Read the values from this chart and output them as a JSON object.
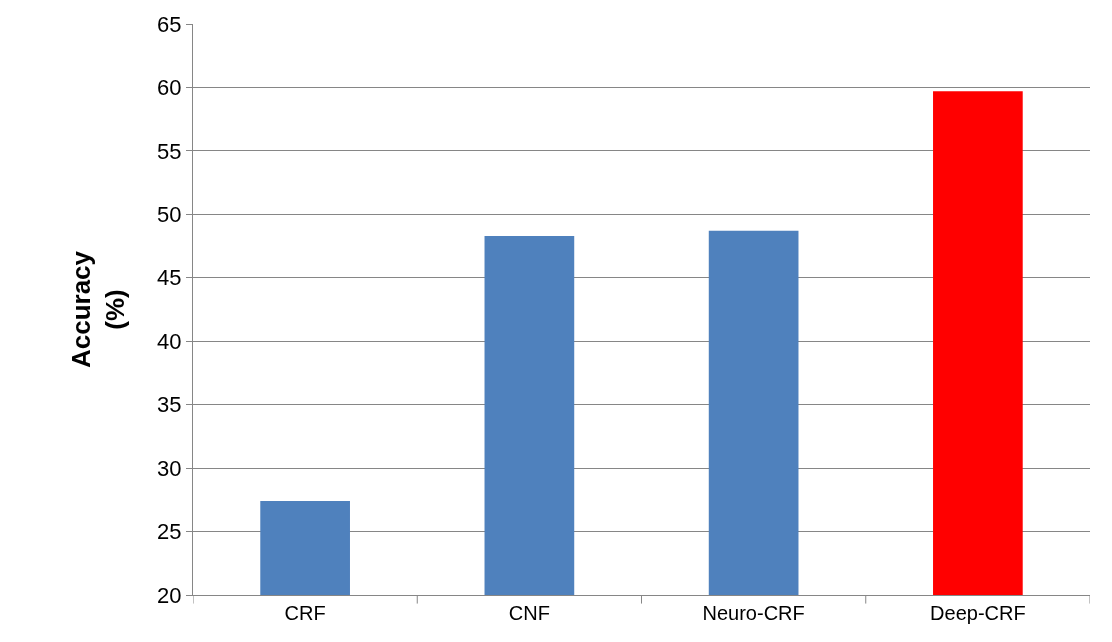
{
  "chart_data": {
    "type": "bar",
    "ylabel": "Accuracy\n(%)",
    "categories": [
      "CRF",
      "CNF",
      "Neuro-CRF",
      "Deep-CRF"
    ],
    "values": [
      27.4,
      48.3,
      48.7,
      59.7
    ],
    "colors": [
      "#4f81bd",
      "#4f81bd",
      "#4f81bd",
      "#ff0000"
    ],
    "ylim": [
      20,
      65
    ],
    "yticks": [
      20,
      25,
      30,
      35,
      40,
      45,
      50,
      55,
      60,
      65
    ],
    "grid": "y",
    "legend": false
  }
}
